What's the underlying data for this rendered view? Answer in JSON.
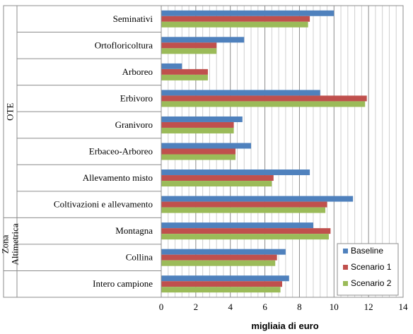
{
  "chart_data": {
    "type": "bar",
    "orientation": "horizontal",
    "xlabel": "migliaia di euro",
    "xlim": [
      0,
      14
    ],
    "xticks": [
      0,
      2,
      4,
      6,
      8,
      10,
      12,
      14
    ],
    "grid": true,
    "legend_position": "bottom-right",
    "groups": [
      {
        "label": "OTE",
        "categories": [
          "Seminativi",
          "Ortofloricoltura",
          "Arboreo",
          "Erbivoro",
          "Granivoro",
          "Erbaceo-Arboreo",
          "Allevamento misto",
          "Coltivazioni e allevamento"
        ]
      },
      {
        "label": "Zona Altimetrica",
        "label_lines": [
          "Zona",
          "Altimetrica"
        ],
        "categories": [
          "Montagna",
          "Collina"
        ]
      },
      {
        "label": "",
        "categories": [
          "Intero campione"
        ]
      }
    ],
    "categories": [
      "Seminativi",
      "Ortofloricoltura",
      "Arboreo",
      "Erbivoro",
      "Granivoro",
      "Erbaceo-Arboreo",
      "Allevamento misto",
      "Coltivazioni e allevamento",
      "Montagna",
      "Collina",
      "Intero campione"
    ],
    "series": [
      {
        "name": "Baseline",
        "color": "#4f81bd",
        "values": [
          10.0,
          4.8,
          1.2,
          9.2,
          4.7,
          5.2,
          8.6,
          11.1,
          8.8,
          7.2,
          7.4
        ]
      },
      {
        "name": "Scenario 1",
        "color": "#c0504d",
        "values": [
          8.6,
          3.2,
          2.7,
          11.9,
          4.2,
          4.3,
          6.5,
          9.6,
          9.8,
          6.7,
          7.0
        ]
      },
      {
        "name": "Scenario 2",
        "color": "#9bbb59",
        "values": [
          8.5,
          3.2,
          2.7,
          11.8,
          4.2,
          4.3,
          6.4,
          9.5,
          9.7,
          6.6,
          6.9
        ]
      }
    ]
  }
}
